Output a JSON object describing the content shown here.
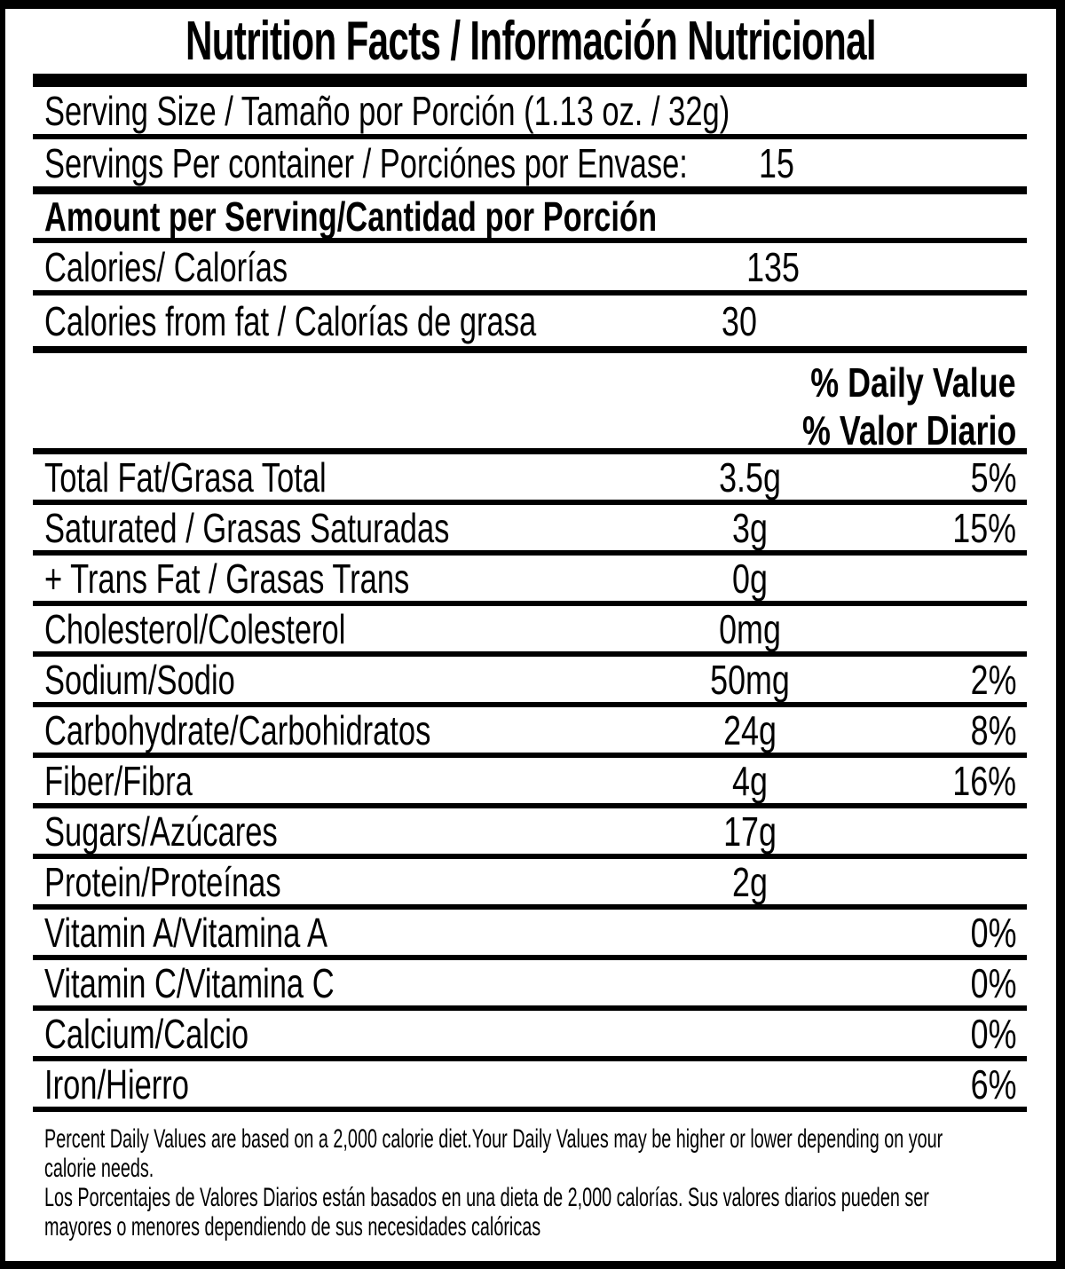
{
  "title": "Nutrition Facts / Información Nutricional",
  "serving": {
    "size_label": "Serving Size / Tamaño por Porción (1.13 oz. / 32g)",
    "per_container_label": "Servings Per container / Porciónes por Envase:",
    "per_container_value": "15"
  },
  "amount_per_serving_label": "Amount per Serving/Cantidad por Porción",
  "calories": {
    "label": "Calories/ Calorías",
    "value": "135"
  },
  "calories_from_fat": {
    "label": "Calories from fat / Calorías de grasa",
    "value": "30"
  },
  "daily_value_header": {
    "en": "% Daily Value",
    "es": "% Valor Diario"
  },
  "nutrients": [
    {
      "label": "Total Fat/Grasa Total",
      "amount": "3.5g",
      "dv": "5%"
    },
    {
      "label": "Saturated / Grasas Saturadas",
      "amount": "3g",
      "dv": "15%"
    },
    {
      "label": "+ Trans Fat / Grasas Trans",
      "amount": "0g",
      "dv": ""
    },
    {
      "label": "Cholesterol/Colesterol",
      "amount": "0mg",
      "dv": ""
    },
    {
      "label": "Sodium/Sodio",
      "amount": "50mg",
      "dv": "2%"
    },
    {
      "label": "Carbohydrate/Carbohidratos",
      "amount": "24g",
      "dv": "8%"
    },
    {
      "label": "Fiber/Fibra",
      "amount": "4g",
      "dv": "16%"
    },
    {
      "label": "Sugars/Azúcares",
      "amount": "17g",
      "dv": ""
    },
    {
      "label": "Protein/Proteínas",
      "amount": "2g",
      "dv": ""
    },
    {
      "label": "Vitamin A/Vitamina A",
      "amount": "",
      "dv": "0%"
    },
    {
      "label": "Vitamin C/Vitamina C",
      "amount": "",
      "dv": "0%"
    },
    {
      "label": "Calcium/Calcio",
      "amount": "",
      "dv": "0%"
    },
    {
      "label": "Iron/Hierro",
      "amount": "",
      "dv": "6%"
    }
  ],
  "footnote_lines": [
    "Percent Daily Values are based on a 2,000 calorie diet.Your Daily Values may be higher or lower depending on your",
    "calorie needs.",
    "Los Porcentajes de Valores Diarios están basados en una dieta de 2,000 calorías. Sus valores diarios pueden ser",
    "mayores o menores dependiendo de sus necesidades calóricas"
  ],
  "colors": {
    "ink": "#000000",
    "background": "#ffffff"
  }
}
